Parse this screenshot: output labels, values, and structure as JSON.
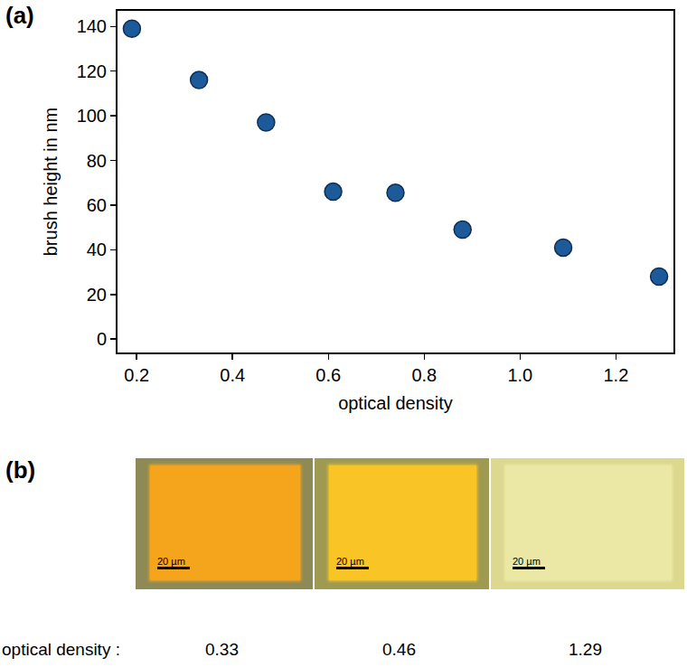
{
  "chart_data": {
    "type": "scatter",
    "panel": "(a)",
    "x_label": "optical density",
    "y_label": "brush height in nm",
    "x": [
      0.19,
      0.33,
      0.47,
      0.61,
      0.74,
      0.88,
      1.09,
      1.29
    ],
    "values": [
      139,
      116,
      97,
      66,
      65.5,
      49,
      41,
      28
    ],
    "color": "#1c5a99",
    "marker": "circle",
    "xlim": [
      0.16,
      1.32
    ],
    "xticks": [
      0.2,
      0.4,
      0.6,
      0.8,
      {
        "value": 1,
        "label": "1.0"
      },
      1.2
    ],
    "ylim": [
      -6,
      147
    ],
    "yticks": [
      0,
      20,
      40,
      60,
      80,
      100,
      120,
      140
    ],
    "grid": false
  },
  "image_panel": {
    "panel": "(b)",
    "caption": "optical density :",
    "images": [
      {
        "optical_density": 0.33,
        "scale_bar": "20 µm"
      },
      {
        "optical_density": 0.46,
        "scale_bar": "20 µm"
      },
      {
        "optical_density": 1.29,
        "scale_bar": "20 µm"
      }
    ]
  }
}
